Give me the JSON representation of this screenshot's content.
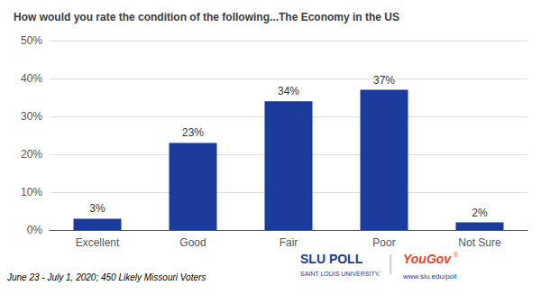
{
  "chart_data": {
    "type": "bar",
    "title": "How would you rate the condition of the following...The Economy in the US",
    "categories": [
      "Excellent",
      "Good",
      "Fair",
      "Poor",
      "Not Sure"
    ],
    "values": [
      3,
      23,
      34,
      37,
      2
    ],
    "value_labels": [
      "3%",
      "23%",
      "34%",
      "37%",
      "2%"
    ],
    "data_labels": true,
    "color": "#1a3a9c",
    "ylim": [
      0,
      50
    ],
    "yticks": [
      {
        "value": 0,
        "label": "0%"
      },
      {
        "value": 10,
        "label": "10%"
      },
      {
        "value": 20,
        "label": "20%"
      },
      {
        "value": 30,
        "label": "30%"
      },
      {
        "value": 40,
        "label": "40%"
      },
      {
        "value": 50,
        "label": "50%"
      }
    ],
    "grid": true,
    "annotations": [
      {
        "text": "June 23 - July 1, 2020; 450 Likely Missouri Voters"
      },
      {
        "text": "SLU POLL",
        "color": "#1a3a9c"
      },
      {
        "text": "SAINT LOUIS UNIVERSITY.",
        "color": "#1a3a9c"
      },
      {
        "text": "|",
        "color": "#cccccc"
      },
      {
        "text": "YouGov",
        "color": "#e8472a"
      },
      {
        "text": "®",
        "color": "#e8472a"
      },
      {
        "text": "www.slu.edu/poll",
        "color": "#1a3a9c"
      }
    ]
  }
}
